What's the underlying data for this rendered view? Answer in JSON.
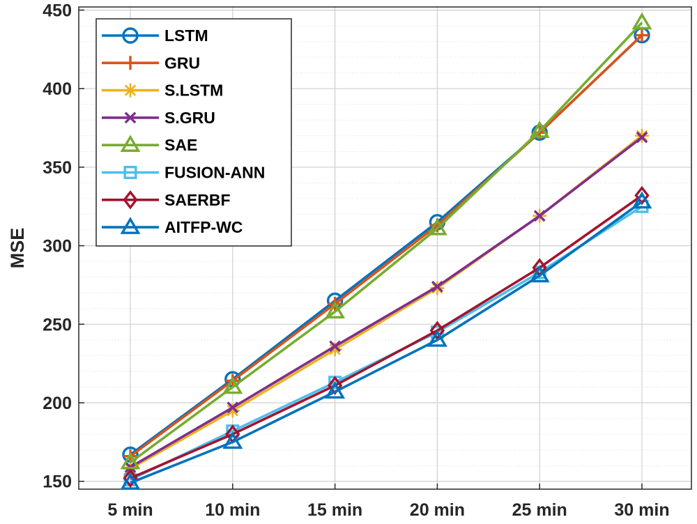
{
  "chart_data": {
    "type": "line",
    "title": "",
    "xlabel": "",
    "ylabel": "MSE",
    "categories": [
      "5 min",
      "10 min",
      "15 min",
      "20 min",
      "25 min",
      "30 min"
    ],
    "ylim": [
      145,
      452
    ],
    "yticks": [
      150,
      200,
      250,
      300,
      350,
      400,
      450
    ],
    "grid": true,
    "legend_position": "top-left",
    "series": [
      {
        "name": "LSTM",
        "color": "#0072BD",
        "marker": "circle",
        "values": [
          167,
          215,
          265,
          315,
          372,
          434
        ]
      },
      {
        "name": "GRU",
        "color": "#D95319",
        "marker": "plus",
        "values": [
          166,
          214,
          263,
          313,
          372,
          434
        ]
      },
      {
        "name": "S.LSTM",
        "color": "#EDB120",
        "marker": "asterisk",
        "values": [
          158,
          195,
          234,
          273,
          319,
          370
        ]
      },
      {
        "name": "S.GRU",
        "color": "#7E2F8E",
        "marker": "cross",
        "values": [
          159,
          197,
          236,
          274,
          319,
          369
        ]
      },
      {
        "name": "SAE",
        "color": "#77AC30",
        "marker": "triangle",
        "values": [
          162,
          210,
          258,
          311,
          373,
          442
        ]
      },
      {
        "name": "FUSION-ANN",
        "color": "#4DBEEE",
        "marker": "square",
        "values": [
          151,
          182,
          213,
          245,
          283,
          325
        ]
      },
      {
        "name": "SAERBF",
        "color": "#A2142F",
        "marker": "diamond",
        "values": [
          152,
          180,
          211,
          246,
          286,
          332
        ]
      },
      {
        "name": "AITFP-WC",
        "color": "#0072BD",
        "marker": "triangle",
        "values": [
          149,
          175,
          207,
          240,
          281,
          328
        ]
      }
    ]
  }
}
